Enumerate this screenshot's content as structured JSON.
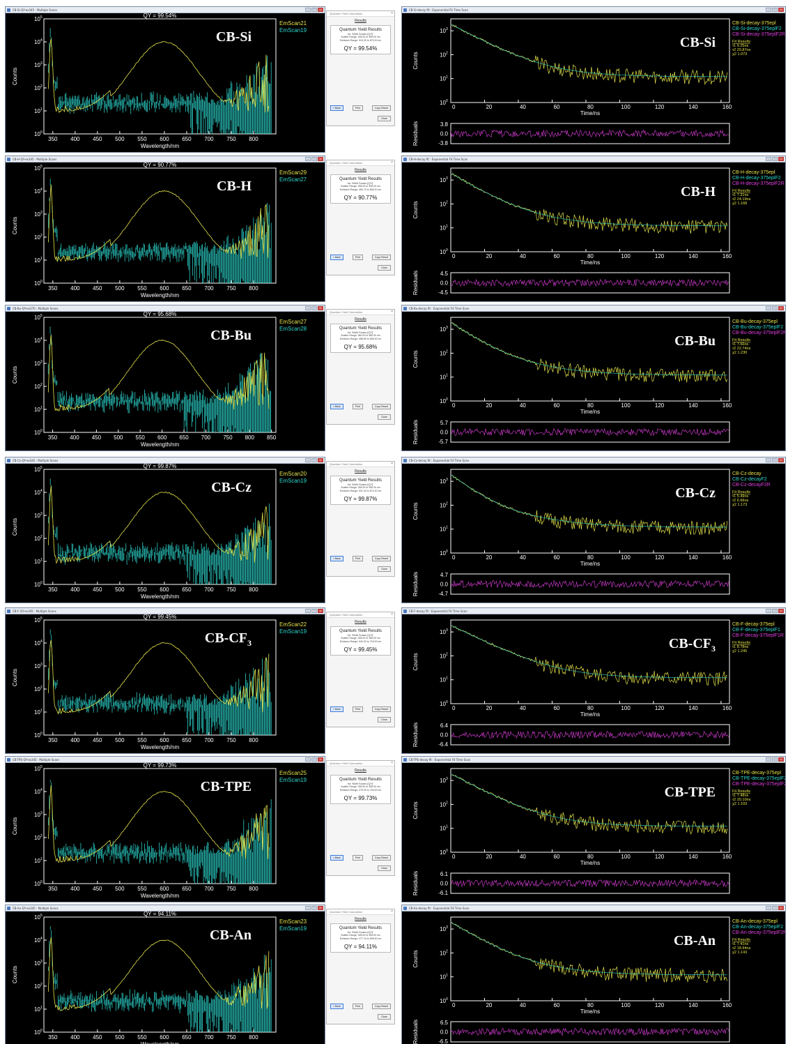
{
  "panels": [
    {
      "compound": "CB-Si",
      "compound_sub": "",
      "qy_window_title": "CB-Si-QY-ex345 : Multiple Scans",
      "qy_label": "QY = 99.54%",
      "em_legend": [
        "EmScan21",
        "EmScan19"
      ],
      "em_xticks": [
        "350",
        "400",
        "450",
        "500",
        "550",
        "600",
        "650",
        "700",
        "750",
        "800"
      ],
      "dialog": {
        "scatter": "Scatter Range: 335.00 to 355.00 nm",
        "emission": "Emission Range: 524.00 to 870.00 nm",
        "qy": "QY = 99.54%"
      },
      "decay_window_title": "CB-Si-decay fit : Exponential Fit Time Scan",
      "decay_legend": [
        "CB-Si-decay-375epl",
        "CB-Si-decay-375eplF2",
        "CB-Si-decay-375eplF2R"
      ],
      "fit": [
        "Fit Results",
        "τ1  9.25ns",
        "τ2  20.87ns",
        "χ2  1.073"
      ],
      "resid_labels": [
        "3.8",
        "0.0",
        "-3.8"
      ],
      "decay_xticks": [
        "0",
        "20",
        "40",
        "60",
        "80",
        "100",
        "120",
        "140",
        "160"
      ]
    },
    {
      "compound": "CB-H",
      "compound_sub": "",
      "qy_window_title": "CB-H-QY-ex345 : Multiple Scans",
      "qy_label": "QY = 90.77%",
      "em_legend": [
        "EmScan29",
        "EmScan27"
      ],
      "em_xticks": [
        "350",
        "400",
        "450",
        "500",
        "550",
        "600",
        "650",
        "700",
        "750",
        "800"
      ],
      "dialog": {
        "scatter": "Scatter Range: 335.00 to 355.00 nm",
        "emission": "Emission Range: 460.70 to 836.20 nm",
        "qy": "QY = 90.77%"
      },
      "decay_window_title": "CB-H-decay fit : Exponential Fit Time Scan",
      "decay_legend": [
        "CB-H-decay-375epl",
        "CB-H-decay-375eplF2",
        "CB-H-decay-375eplF2R"
      ],
      "fit": [
        "Fit Results",
        "τ1  7.31ns",
        "τ2  24.19ns",
        "χ2  1.168"
      ],
      "resid_labels": [
        "4.5",
        "0.0",
        "-4.5"
      ],
      "decay_xticks": [
        "0",
        "20",
        "40",
        "60",
        "80",
        "100",
        "120",
        "140",
        "160"
      ]
    },
    {
      "compound": "CB-Bu",
      "compound_sub": "",
      "qy_window_title": "CB-Bu-QY-ex370 : Multiple Scans",
      "qy_label": "QY = 95.68%",
      "em_legend": [
        "EmScan27",
        "EmScan28"
      ],
      "em_xticks": [
        "350",
        "400",
        "450",
        "500",
        "550",
        "600",
        "650",
        "700",
        "750",
        "800",
        "850"
      ],
      "dialog": {
        "scatter": "Scatter Range: 360.00 to 380.00 nm",
        "emission": "Emission Range: 488.80 to 836.00 nm",
        "qy": "QY = 95.68%"
      },
      "decay_window_title": "CB-Bu-decay fit : Exponential Fit Time Scan",
      "decay_legend": [
        "CB-Bu-decay-375epl",
        "CB-Bu-decay-375eplF2",
        "CB-Bu-decay-375eplF2R"
      ],
      "fit": [
        "Fit Results",
        "τ1  7.66ns",
        "τ2  22.74ns",
        "χ2  1.230"
      ],
      "resid_labels": [
        "5.7",
        "0.0",
        "-5.7"
      ],
      "decay_xticks": [
        "0",
        "20",
        "40",
        "60",
        "80",
        "100",
        "120",
        "140",
        "160"
      ]
    },
    {
      "compound": "CB-Cz",
      "compound_sub": "",
      "qy_window_title": "CB-Cz-QY-ex345 : Multiple Scans",
      "qy_label": "QY = 99.87%",
      "em_legend": [
        "EmScan20",
        "EmScan19"
      ],
      "em_xticks": [
        "350",
        "400",
        "450",
        "500",
        "550",
        "600",
        "650",
        "700",
        "750",
        "800"
      ],
      "dialog": {
        "scatter": "Scatter Range: 335.00 to 355.00 nm",
        "emission": "Emission Range: 501.00 to 874.20 nm",
        "qy": "QY = 99.87%"
      },
      "decay_window_title": "CB-Cz-decay fit : Exponential Fit Time Scan",
      "decay_legend": [
        "CB-Cz-decay",
        "CB-Cz-decayF2",
        "CB-Cz-decayF2R"
      ],
      "fit": [
        "Fit Results",
        "τ1  5.49ns",
        "τ2  6.66ns",
        "χ2  1.173"
      ],
      "resid_labels": [
        "4.7",
        "0.0",
        "-4.7"
      ],
      "decay_xticks": [
        "0",
        "20",
        "40",
        "60",
        "80",
        "100",
        "120",
        "140",
        "160"
      ]
    },
    {
      "compound": "CB-CF",
      "compound_sub": "3",
      "qy_window_title": "CB-F-QY-ex345 : Multiple Scans",
      "qy_label": "QY = 99.45%",
      "em_legend": [
        "EmScan22",
        "EmScan19"
      ],
      "em_xticks": [
        "350",
        "400",
        "450",
        "500",
        "550",
        "600",
        "650",
        "700",
        "750",
        "800"
      ],
      "dialog": {
        "scatter": "Scatter Range: 335.00 to 355.00 nm",
        "emission": "Emission Range: 540.00 to 718.00 nm",
        "qy": "QY = 99.45%"
      },
      "decay_window_title": "CB-F-decay fit : Exponential Fit Time Scan",
      "decay_legend": [
        "CB-F-decay-375epl",
        "CB-F-decay-375eplF1",
        "CB-F-decay-375eplF1R"
      ],
      "fit": [
        "Fit Results",
        "τ1  8.78ns",
        "χ2  1.245"
      ],
      "resid_labels": [
        "6.4",
        "0.0",
        "-6.4"
      ],
      "decay_xticks": [
        "0",
        "20",
        "40",
        "60",
        "80",
        "100",
        "120",
        "140",
        "160"
      ]
    },
    {
      "compound": "CB-TPE",
      "compound_sub": "",
      "qy_window_title": "CB-TPE-QY-ex345 : Multiple Scans",
      "qy_label": "QY = 99.73%",
      "em_legend": [
        "EmScan25",
        "EmScan19"
      ],
      "em_xticks": [
        "350",
        "400",
        "450",
        "500",
        "550",
        "600",
        "650",
        "700",
        "750",
        "800"
      ],
      "dialog": {
        "scatter": "Scatter Range: 335.00 to 355.00 nm",
        "emission": "Emission Range: 475.00 to 745.00 nm",
        "qy": "QY = 99.73%"
      },
      "decay_window_title": "CB-TPE-decay fit : Exponential Fit Time Scan",
      "decay_legend": [
        "CB-TPE-decay-375epl",
        "CB-TPE-decay-375eplF2",
        "CB-TPE-decay-375eplF2R"
      ],
      "fit": [
        "Fit Results",
        "τ1  7.48ns",
        "τ2  20.10ns",
        "χ2  1.103"
      ],
      "resid_labels": [
        "6.1",
        "0.0",
        "-6.1"
      ],
      "decay_xticks": [
        "0",
        "20",
        "40",
        "60",
        "80",
        "100",
        "120",
        "140",
        "160"
      ]
    },
    {
      "compound": "CB-An",
      "compound_sub": "",
      "qy_window_title": "CB-An-QY-ex345 : Multiple Scans",
      "qy_label": "QY = 94.11%",
      "em_legend": [
        "EmScan23",
        "EmScan19"
      ],
      "em_xticks": [
        "350",
        "400",
        "450",
        "500",
        "550",
        "600",
        "650",
        "700",
        "750",
        "800"
      ],
      "dialog": {
        "scatter": "Scatter Range: 335.00 to 355.00 nm",
        "emission": "Emission Range: 477.10 to 835.30 nm",
        "qy": "QY = 94.11%"
      },
      "decay_window_title": "CB-An-decay fit : Exponential Fit Time Scan",
      "decay_legend": [
        "CB-An-decay-375epl",
        "CB-An-decay-375eplF2",
        "CB-An-decay-375eplF2R"
      ],
      "fit": [
        "Fit Results",
        "τ1  7.41ns",
        "τ2  18.94ns",
        "χ2  1.143"
      ],
      "resid_labels": [
        "6.5",
        "0.0",
        "-6.5"
      ],
      "decay_xticks": [
        "0",
        "20",
        "40",
        "60",
        "80",
        "100",
        "120",
        "140",
        "160"
      ]
    }
  ],
  "common": {
    "em_ylabel": "Counts",
    "em_xlabel": "Wavelength/nm",
    "em_yticks": [
      "10",
      "10",
      "10",
      "10",
      "10",
      "10"
    ],
    "em_yexp": [
      "0",
      "1",
      "2",
      "3",
      "4",
      "5"
    ],
    "decay_ylabel": "Counts",
    "decay_xlabel": "Time/ns",
    "decay_yticks": [
      "10",
      "10",
      "10",
      "10"
    ],
    "decay_yexp": [
      "0",
      "1",
      "2",
      "3"
    ],
    "resid_ylabel": "Residuals",
    "dialog_title": "Quantum Yield Calculation",
    "dialog_results": "Results",
    "dialog_heading": "Quantum Yield Results",
    "dialog_subheading": "for 'Multi Scans [QY]'",
    "btn_back": "< Back",
    "btn_print": "Print",
    "btn_copy": "Copy Result",
    "btn_close": "Close",
    "win_min": "–",
    "win_max": "□",
    "win_close": "×"
  },
  "colors": {
    "yellow": "#e6e44a",
    "cyan": "#2ed8d0",
    "magenta": "#e040e0",
    "axis": "#ffffff"
  },
  "chart_data": {
    "type": "line",
    "note_series": [
      "emission scan (sample)",
      "emission scan (blank)",
      "decay",
      "fit",
      "residuals"
    ],
    "emission_xlim": [
      330,
      850
    ],
    "emission_ylim_log10": [
      0,
      5
    ],
    "decay_xlim": [
      0,
      165
    ],
    "decay_ylim_log10": [
      0,
      3.5
    ]
  }
}
